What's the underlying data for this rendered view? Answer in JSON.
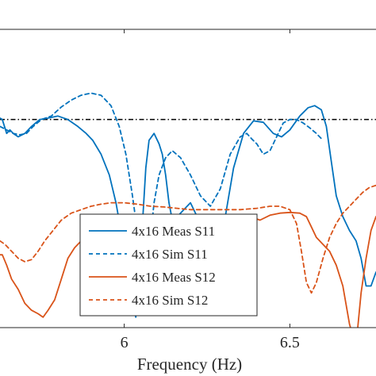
{
  "chart_data": {
    "type": "line",
    "title": "",
    "xlabel": "Frequency (Hz)",
    "ylabel": "",
    "xlim": [
      5.625,
      6.76
    ],
    "ylim": [
      -40,
      3
    ],
    "grid": false,
    "legend_position": "bottom-center",
    "x_ticks": [
      {
        "value": 6,
        "label": "6"
      },
      {
        "value": 6.5,
        "label": "6.5"
      }
    ],
    "reference_line": {
      "y": -10,
      "color": "#000000",
      "style": "dash-dot"
    },
    "series": [
      {
        "name": "4x16 Meas S11",
        "color": "#0072BD",
        "style": "solid",
        "x": [
          5.625,
          5.632,
          5.645,
          5.655,
          5.665,
          5.68,
          5.7,
          5.72,
          5.745,
          5.77,
          5.8,
          5.83,
          5.86,
          5.885,
          5.905,
          5.93,
          5.955,
          5.975,
          5.99,
          6.005,
          6.015,
          6.025,
          6.035,
          6.045,
          6.055,
          6.065,
          6.075,
          6.09,
          6.105,
          6.115,
          6.125,
          6.135,
          6.145,
          6.16,
          6.18,
          6.2,
          6.22,
          6.24,
          6.26,
          6.27,
          6.28,
          6.29,
          6.305,
          6.33,
          6.36,
          6.39,
          6.42,
          6.45,
          6.475,
          6.5,
          6.53,
          6.555,
          6.575,
          6.595,
          6.61,
          6.625,
          6.64,
          6.66,
          6.68,
          6.7,
          6.715,
          6.73,
          6.745,
          6.76
        ],
        "y": [
          -9.8,
          -10,
          -12,
          -11.5,
          -12,
          -12.5,
          -12,
          -11,
          -10,
          -9.8,
          -9.5,
          -10,
          -11,
          -12,
          -13,
          -15,
          -18,
          -22,
          -26,
          -30,
          -33,
          -36,
          -38.5,
          -33,
          -25,
          -17,
          -13,
          -12,
          -13.5,
          -15,
          -18,
          -22,
          -24.5,
          -24,
          -23,
          -22,
          -24,
          -28,
          -34,
          -37,
          -38,
          -33,
          -24,
          -17,
          -12,
          -10.2,
          -10.4,
          -12,
          -12.5,
          -11.5,
          -9.5,
          -8.3,
          -8,
          -8.6,
          -11,
          -16,
          -21,
          -24,
          -26,
          -27.5,
          -30,
          -34,
          -34,
          -32
        ]
      },
      {
        "name": "4x16 Sim S11",
        "color": "#0072BD",
        "style": "dashed",
        "x": [
          5.625,
          5.645,
          5.665,
          5.685,
          5.705,
          5.725,
          5.75,
          5.78,
          5.81,
          5.84,
          5.87,
          5.9,
          5.93,
          5.96,
          5.985,
          6.005,
          6.025,
          6.045,
          6.06,
          6.075,
          6.09,
          6.105,
          6.125,
          6.145,
          6.17,
          6.2,
          6.23,
          6.26,
          6.29,
          6.32,
          6.35,
          6.37,
          6.385,
          6.4,
          6.42,
          6.44,
          6.46,
          6.48,
          6.5,
          6.52,
          6.54,
          6.56,
          6.58,
          6.6
        ],
        "y": [
          -11,
          -11.5,
          -12,
          -12.2,
          -12,
          -11,
          -10,
          -9.5,
          -8.2,
          -7.2,
          -6.5,
          -6.2,
          -6.5,
          -8,
          -11,
          -15,
          -21,
          -28,
          -32,
          -29,
          -22,
          -18,
          -15.5,
          -14.5,
          -15.5,
          -18,
          -21,
          -22.5,
          -20,
          -15,
          -12.5,
          -12,
          -12.8,
          -13.5,
          -15,
          -14.5,
          -12.5,
          -10.5,
          -10,
          -10,
          -10.5,
          -11.2,
          -12,
          -13
        ]
      },
      {
        "name": "4x16 Meas S12",
        "color": "#D95319",
        "style": "solid",
        "x": [
          5.625,
          5.632,
          5.645,
          5.66,
          5.68,
          5.7,
          5.72,
          5.74,
          5.755,
          5.77,
          5.79,
          5.81,
          5.83,
          5.85,
          5.87,
          5.9,
          5.93,
          5.95,
          5.97,
          5.99,
          6.01,
          6.05,
          6.1,
          6.15,
          6.2,
          6.25,
          6.3,
          6.35,
          6.38,
          6.41,
          6.44,
          6.47,
          6.5,
          6.53,
          6.55,
          6.565,
          6.58,
          6.6,
          6.62,
          6.64,
          6.66,
          6.68,
          6.695,
          6.705,
          6.715,
          6.73,
          6.745,
          6.76
        ],
        "y": [
          -29.5,
          -29.5,
          -31,
          -33,
          -34.5,
          -36.5,
          -37.5,
          -38,
          -38.5,
          -37.5,
          -36,
          -33,
          -30,
          -28.5,
          -27.5,
          -26.5,
          -26,
          -25.5,
          -25,
          -25,
          -25.2,
          -25.2,
          -25,
          -24.8,
          -24.5,
          -24,
          -23.8,
          -23.8,
          -24,
          -24.5,
          -23.8,
          -23.5,
          -23.4,
          -23.5,
          -24,
          -25.5,
          -27,
          -28,
          -29,
          -31,
          -34,
          -39.5,
          -42,
          -40,
          -35,
          -30,
          -26,
          -24
        ]
      },
      {
        "name": "4x16 Sim S12",
        "color": "#D95319",
        "style": "dashed",
        "x": [
          5.625,
          5.64,
          5.66,
          5.68,
          5.7,
          5.72,
          5.74,
          5.76,
          5.785,
          5.81,
          5.84,
          5.87,
          5.9,
          5.93,
          5.96,
          6,
          6.04,
          6.08,
          6.12,
          6.16,
          6.2,
          6.25,
          6.3,
          6.35,
          6.4,
          6.44,
          6.47,
          6.5,
          6.52,
          6.535,
          6.55,
          6.565,
          6.58,
          6.6,
          6.62,
          6.64,
          6.66,
          6.68,
          6.7,
          6.72,
          6.74,
          6.76
        ],
        "y": [
          -27.5,
          -28,
          -29,
          -30,
          -30.5,
          -30.2,
          -29,
          -27.5,
          -26,
          -24.5,
          -23.5,
          -23,
          -22.5,
          -22.2,
          -22,
          -22,
          -22.2,
          -22.5,
          -22.6,
          -22.8,
          -23,
          -23,
          -23,
          -23,
          -22.8,
          -22.5,
          -22.5,
          -23,
          -25,
          -29,
          -33.5,
          -35,
          -33.5,
          -30,
          -27,
          -25,
          -23.5,
          -22.5,
          -21.5,
          -20.5,
          -19.8,
          -19.5
        ]
      }
    ]
  }
}
